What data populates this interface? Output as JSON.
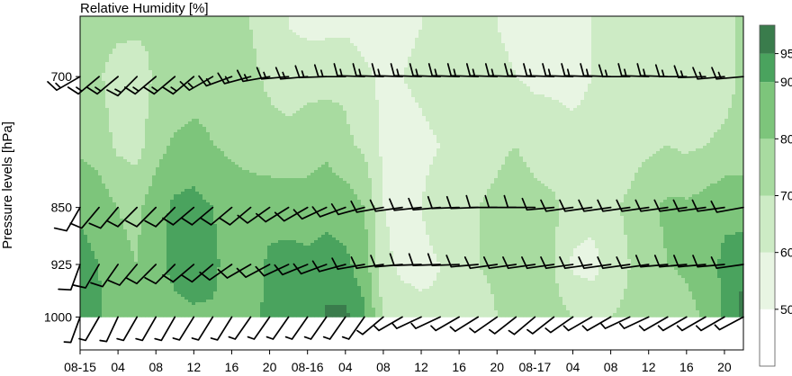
{
  "chart_data": {
    "type": "heatmap",
    "title": "Relative Humidity [%]",
    "xlabel": "",
    "ylabel": "Pressure levels [hPa]",
    "x_tick_labels": [
      "08-15",
      "04",
      "08",
      "12",
      "16",
      "20",
      "08-16",
      "04",
      "08",
      "12",
      "16",
      "20",
      "08-17",
      "04",
      "08",
      "12",
      "16",
      "20"
    ],
    "x_tick_hours": [
      0,
      4,
      8,
      12,
      16,
      20,
      24,
      28,
      32,
      36,
      40,
      44,
      48,
      52,
      56,
      60,
      64,
      68
    ],
    "xlim_hours": [
      0,
      70
    ],
    "y_ticks": [
      700,
      850,
      925,
      1000
    ],
    "ylim": [
      640,
      1050
    ],
    "y_scale": "log",
    "colorbar": {
      "tick_labels": [
        "50",
        "60",
        "70",
        "80",
        "90",
        "95"
      ],
      "levels": [
        40,
        50,
        60,
        70,
        80,
        90,
        95,
        100
      ],
      "colors": [
        "#ffffff",
        "#e8f5e3",
        "#cdebc5",
        "#a8dba0",
        "#7dc57b",
        "#4aa35e",
        "#3a7c4c"
      ]
    },
    "rh_grid": {
      "hours": [
        0,
        2,
        4,
        6,
        8,
        10,
        12,
        14,
        16,
        18,
        20,
        22,
        24,
        26,
        28,
        30,
        32,
        34,
        36,
        38,
        40,
        42,
        44,
        46,
        48,
        50,
        52,
        54,
        56,
        58,
        60,
        62,
        64,
        66,
        68,
        70
      ],
      "levels": [
        1000,
        925,
        850,
        775,
        700,
        650
      ],
      "values": [
        [
          93,
          91,
          86,
          85,
          86,
          88,
          89,
          89,
          87,
          88,
          92,
          93,
          92,
          95,
          96,
          92,
          70,
          64,
          62,
          61,
          62,
          65,
          70,
          72,
          72,
          74,
          70,
          68,
          70,
          72,
          74,
          72,
          76,
          82,
          92,
          96
        ],
        [
          94,
          90,
          82,
          80,
          88,
          92,
          93,
          92,
          86,
          85,
          92,
          94,
          93,
          95,
          92,
          86,
          62,
          58,
          58,
          60,
          64,
          70,
          72,
          74,
          72,
          70,
          58,
          56,
          64,
          70,
          76,
          80,
          82,
          86,
          92,
          95
        ],
        [
          88,
          85,
          80,
          78,
          86,
          92,
          93,
          90,
          86,
          85,
          86,
          85,
          84,
          86,
          86,
          80,
          60,
          58,
          60,
          64,
          68,
          70,
          72,
          76,
          74,
          72,
          66,
          64,
          68,
          72,
          78,
          82,
          82,
          84,
          88,
          86
        ],
        [
          78,
          76,
          68,
          66,
          76,
          82,
          84,
          80,
          78,
          76,
          74,
          74,
          76,
          78,
          72,
          68,
          58,
          56,
          58,
          60,
          64,
          66,
          68,
          70,
          66,
          64,
          62,
          62,
          64,
          66,
          68,
          70,
          68,
          70,
          72,
          74
        ],
        [
          76,
          72,
          62,
          64,
          72,
          72,
          74,
          76,
          74,
          72,
          68,
          64,
          66,
          66,
          68,
          62,
          58,
          60,
          62,
          64,
          66,
          64,
          62,
          60,
          58,
          58,
          58,
          60,
          62,
          64,
          62,
          62,
          62,
          64,
          66,
          72
        ],
        [
          76,
          76,
          74,
          72,
          72,
          74,
          78,
          76,
          74,
          70,
          66,
          60,
          58,
          58,
          58,
          56,
          56,
          58,
          60,
          62,
          64,
          62,
          60,
          58,
          58,
          58,
          58,
          60,
          60,
          62,
          60,
          60,
          60,
          62,
          66,
          74
        ]
      ]
    },
    "wind_barbs": {
      "levels": [
        700,
        850,
        925,
        1000
      ],
      "hours": [
        0,
        2,
        4,
        6,
        8,
        10,
        12,
        14,
        16,
        18,
        20,
        22,
        24,
        26,
        28,
        30,
        32,
        34,
        36,
        38,
        40,
        42,
        44,
        46,
        48,
        50,
        52,
        54,
        56,
        58,
        60,
        62,
        64,
        66,
        68,
        70
      ],
      "dir_deg": [
        [
          240,
          230,
          230,
          225,
          230,
          230,
          230,
          240,
          250,
          255,
          260,
          265,
          265,
          268,
          270,
          272,
          272,
          272,
          272,
          272,
          272,
          272,
          272,
          272,
          272,
          272,
          272,
          272,
          272,
          270,
          272,
          272,
          270,
          268,
          265,
          265
        ],
        [
          210,
          220,
          220,
          225,
          225,
          225,
          230,
          230,
          230,
          230,
          235,
          238,
          240,
          245,
          250,
          255,
          260,
          262,
          264,
          265,
          268,
          268,
          270,
          270,
          270,
          265,
          262,
          262,
          262,
          262,
          262,
          262,
          262,
          262,
          262,
          260
        ],
        [
          200,
          210,
          215,
          220,
          225,
          225,
          230,
          230,
          235,
          240,
          242,
          245,
          248,
          250,
          255,
          260,
          262,
          265,
          268,
          268,
          268,
          265,
          262,
          262,
          262,
          262,
          262,
          262,
          262,
          262,
          262,
          265,
          265,
          265,
          265,
          262
        ],
        [
          200,
          210,
          205,
          210,
          210,
          210,
          212,
          212,
          212,
          215,
          215,
          215,
          215,
          215,
          215,
          215,
          230,
          240,
          245,
          245,
          240,
          238,
          235,
          232,
          230,
          232,
          235,
          240,
          240,
          245,
          245,
          240,
          240,
          240,
          240,
          242
        ]
      ],
      "speed_kt": [
        [
          15,
          15,
          15,
          15,
          15,
          15,
          15,
          15,
          15,
          15,
          15,
          15,
          15,
          15,
          15,
          15,
          15,
          15,
          15,
          15,
          15,
          15,
          15,
          15,
          15,
          15,
          15,
          15,
          15,
          15,
          15,
          15,
          15,
          15,
          15,
          15
        ],
        [
          10,
          10,
          10,
          10,
          10,
          10,
          10,
          10,
          10,
          10,
          10,
          10,
          10,
          10,
          10,
          10,
          10,
          10,
          10,
          10,
          10,
          10,
          10,
          10,
          10,
          10,
          10,
          10,
          10,
          10,
          10,
          10,
          10,
          10,
          10,
          10
        ],
        [
          10,
          10,
          10,
          10,
          10,
          10,
          10,
          10,
          10,
          10,
          10,
          10,
          10,
          10,
          10,
          10,
          10,
          10,
          10,
          10,
          10,
          10,
          10,
          10,
          10,
          10,
          10,
          10,
          10,
          10,
          10,
          10,
          10,
          10,
          10,
          10
        ],
        [
          5,
          5,
          5,
          5,
          5,
          5,
          5,
          5,
          5,
          5,
          5,
          5,
          5,
          5,
          5,
          5,
          5,
          5,
          5,
          5,
          5,
          5,
          5,
          5,
          5,
          5,
          5,
          5,
          5,
          5,
          5,
          5,
          5,
          5,
          5,
          5
        ]
      ]
    }
  }
}
